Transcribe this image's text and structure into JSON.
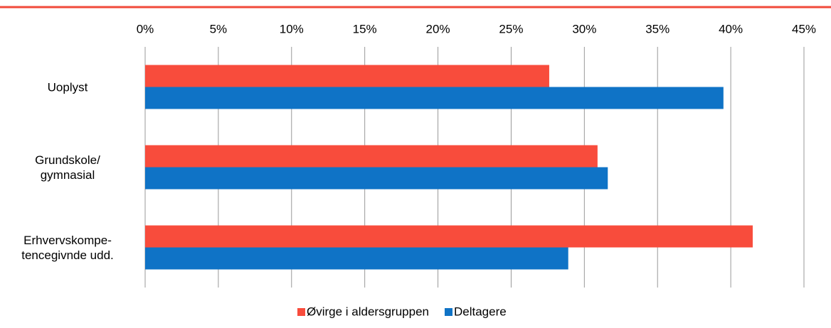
{
  "chart_data": {
    "type": "hbar",
    "categories": [
      "Uoplyst",
      "Grundskole/\ngymnasial",
      "Erhvervskompe-\ntencegivnde udd."
    ],
    "series": [
      {
        "name": "Øvirge i aldersgruppen",
        "color": "#f84c3c",
        "values": [
          27.6,
          30.9,
          41.5
        ]
      },
      {
        "name": "Deltagere",
        "color": "#0f73c6",
        "values": [
          39.5,
          31.6,
          28.9
        ]
      }
    ],
    "xlim": [
      0,
      45
    ],
    "xticks": [
      {
        "value": 0,
        "label": "0%"
      },
      {
        "value": 5,
        "label": "5%"
      },
      {
        "value": 10,
        "label": "10%"
      },
      {
        "value": 15,
        "label": "15%"
      },
      {
        "value": 20,
        "label": "20%"
      },
      {
        "value": 25,
        "label": "25%"
      },
      {
        "value": 30,
        "label": "30%"
      },
      {
        "value": 35,
        "label": "35%"
      },
      {
        "value": 40,
        "label": "40%"
      },
      {
        "value": 45,
        "label": "45%"
      }
    ],
    "grid": true
  }
}
